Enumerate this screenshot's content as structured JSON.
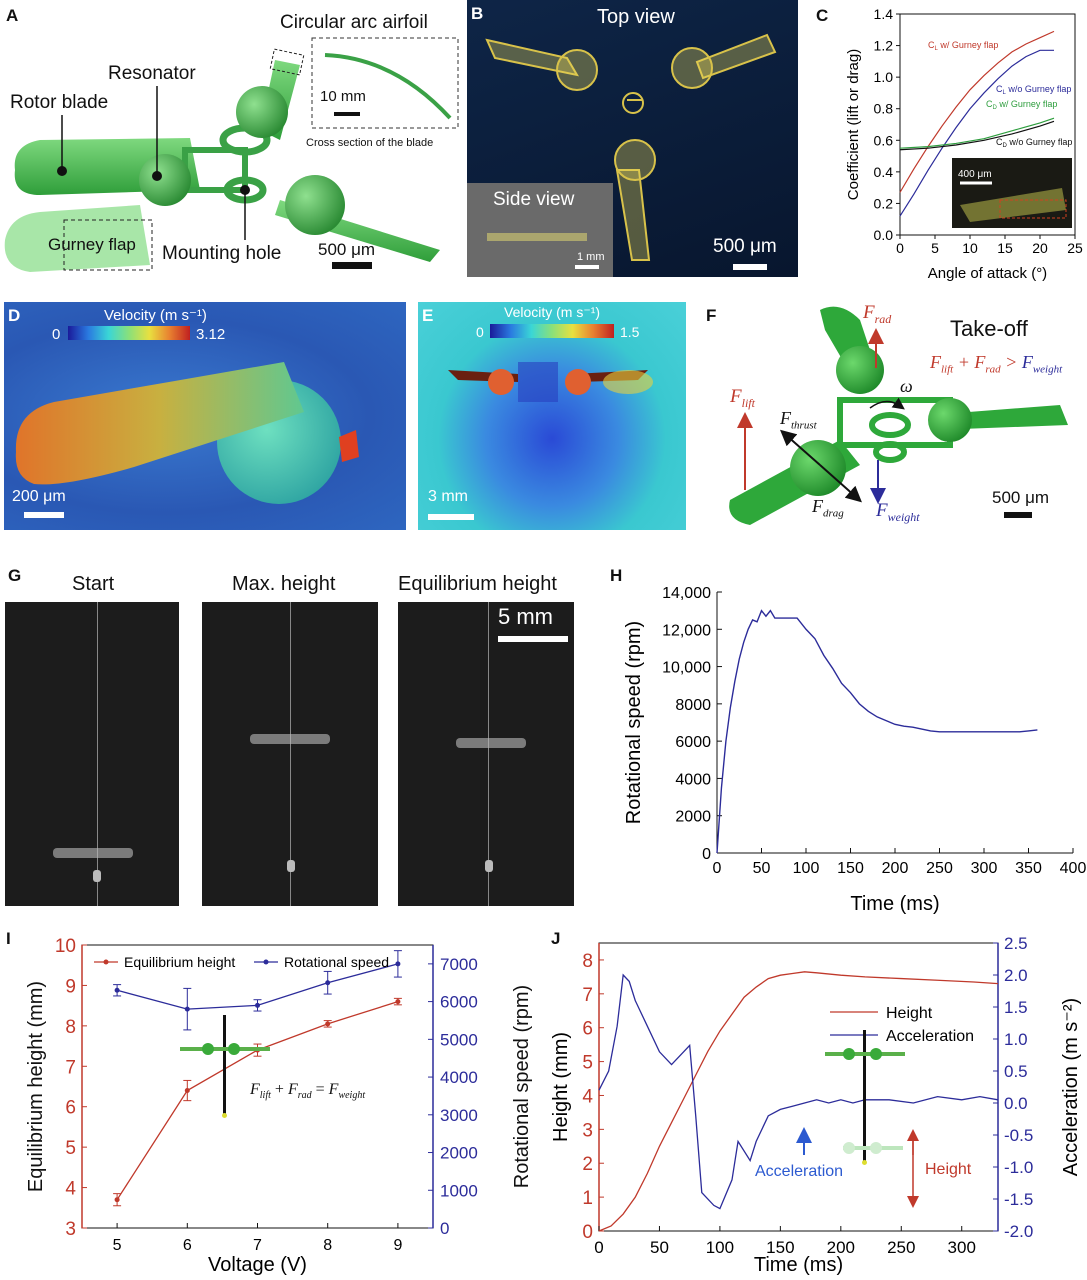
{
  "panels": {
    "A": {
      "label": "A",
      "rotor_blade": "Rotor blade",
      "resonator": "Resonator",
      "circular_arc_airfoil": "Circular arc airfoil",
      "scale_10mm": "10 mm",
      "cross_section": "Cross section of the blade",
      "gurney_flap": "Gurney flap",
      "mounting_hole": "Mounting hole",
      "scale_500um": "500 μm"
    },
    "B": {
      "label": "B",
      "top_view": "Top view",
      "side_view": "Side view",
      "scale_1mm": "1 mm",
      "scale_500um": "500 μm"
    },
    "C": {
      "label": "C"
    },
    "D": {
      "label": "D",
      "colorbar_title": "Velocity (m s⁻¹)",
      "cb_min": "0",
      "cb_max": "3.12",
      "scale": "200 μm"
    },
    "E": {
      "label": "E",
      "colorbar_title": "Velocity (m s⁻¹)",
      "cb_min": "0",
      "cb_max": "1.5",
      "scale": "3 mm"
    },
    "F": {
      "label": "F",
      "takeoff": "Take-off",
      "f_rad": "F",
      "f_rad_sub": "rad",
      "f_lift": "F",
      "f_lift_sub": "lift",
      "f_thrust": "F",
      "f_thrust_sub": "thrust",
      "f_drag": "F",
      "f_drag_sub": "drag",
      "f_weight": "F",
      "f_weight_sub": "weight",
      "omega": "ω",
      "eq_a": "F",
      "eq_a_sub": "lift",
      "eq_plus": " + ",
      "eq_b": "F",
      "eq_b_sub": "rad",
      "eq_gt": " > ",
      "eq_c": "F",
      "eq_c_sub": "weight",
      "scale": "500 μm"
    },
    "G": {
      "label": "G",
      "start": "Start",
      "max_height": "Max. height",
      "equilibrium_height": "Equilibrium height",
      "scale": "5 mm"
    },
    "H": {
      "label": "H"
    },
    "I": {
      "label": "I",
      "eq_a": "F",
      "eq_a_sub": "lift",
      "eq_plus": " + ",
      "eq_b": "F",
      "eq_b_sub": "rad",
      "eq_equals": " = ",
      "eq_c": "F",
      "eq_c_sub": "weight"
    },
    "J": {
      "label": "J",
      "acceleration_note": "Acceleration",
      "height_note": "Height"
    }
  },
  "colors": {
    "red": "#c0392b",
    "blue": "#2c2c9a",
    "green": "#2e9e3e",
    "black": "#111111",
    "lightgreen": "#66cc44"
  },
  "chart_data": [
    {
      "id": "C",
      "type": "line",
      "xlabel": "Angle of attack (°)",
      "ylabel": "Coefficient (lift or drag)",
      "xlim": [
        0,
        25
      ],
      "ylim": [
        0,
        1.4
      ],
      "xticks": [
        "0",
        "5",
        "10",
        "15",
        "20",
        "25"
      ],
      "yticks": [
        "0.0",
        "0.2",
        "0.4",
        "0.6",
        "0.8",
        "1.0",
        "1.2",
        "1.4"
      ],
      "series": [
        {
          "name": "CL w/ Gurney flap",
          "color": "#c0392b",
          "x": [
            0,
            2,
            4,
            6,
            8,
            10,
            12,
            14,
            16,
            18,
            20,
            22
          ],
          "y": [
            0.27,
            0.42,
            0.56,
            0.69,
            0.81,
            0.92,
            1.01,
            1.09,
            1.16,
            1.21,
            1.25,
            1.29
          ]
        },
        {
          "name": "CL w/o Gurney flap",
          "color": "#2c2c9a",
          "x": [
            0,
            2,
            4,
            6,
            8,
            10,
            12,
            14,
            16,
            18,
            20,
            21,
            22
          ],
          "y": [
            0.12,
            0.26,
            0.41,
            0.55,
            0.68,
            0.8,
            0.9,
            0.99,
            1.07,
            1.13,
            1.17,
            1.17,
            1.17
          ]
        },
        {
          "name": "CD w/ Gurney flap",
          "color": "#2e9e3e",
          "x": [
            0,
            4,
            8,
            12,
            16,
            20,
            22
          ],
          "y": [
            0.55,
            0.56,
            0.58,
            0.61,
            0.66,
            0.71,
            0.74
          ]
        },
        {
          "name": "CD w/o Gurney flap",
          "color": "#111111",
          "x": [
            0,
            4,
            8,
            12,
            16,
            20,
            22
          ],
          "y": [
            0.54,
            0.55,
            0.57,
            0.6,
            0.64,
            0.69,
            0.72
          ]
        }
      ],
      "legend_labels": [
        "C",
        "L",
        " w/ Gurney flap",
        "C",
        "L",
        " w/o Gurney flap",
        "C",
        "D",
        " w/ Gurney flap",
        "C",
        "D",
        " w/o Gurney flap"
      ],
      "inset_scale": "400 μm"
    },
    {
      "id": "H",
      "type": "line",
      "xlabel": "Time (ms)",
      "ylabel": "Rotational speed (rpm)",
      "xlim": [
        0,
        400
      ],
      "ylim": [
        0,
        14000
      ],
      "xticks": [
        "0",
        "50",
        "100",
        "150",
        "200",
        "250",
        "300",
        "350",
        "400"
      ],
      "yticks": [
        "0",
        "2000",
        "4000",
        "6000",
        "8000",
        "10,000",
        "12,000",
        "14,000"
      ],
      "series": [
        {
          "name": "",
          "color": "#2c2c9a",
          "x": [
            0,
            5,
            10,
            15,
            20,
            25,
            30,
            35,
            40,
            45,
            50,
            55,
            60,
            65,
            70,
            80,
            90,
            100,
            110,
            120,
            130,
            140,
            150,
            160,
            170,
            180,
            190,
            200,
            210,
            220,
            230,
            240,
            250,
            260,
            280,
            300,
            320,
            340,
            350,
            360
          ],
          "y": [
            0,
            3500,
            6000,
            7800,
            9200,
            10400,
            11300,
            12000,
            12500,
            12400,
            13000,
            12700,
            13000,
            12600,
            12600,
            12600,
            12600,
            12000,
            11500,
            10600,
            9900,
            9100,
            8600,
            8000,
            7600,
            7300,
            7100,
            6900,
            6800,
            6750,
            6650,
            6550,
            6500,
            6500,
            6500,
            6500,
            6500,
            6500,
            6550,
            6600
          ]
        }
      ]
    },
    {
      "id": "I",
      "type": "line",
      "xlabel": "Voltage (V)",
      "ylabel_left": "Equilibrium height (mm)",
      "ylabel_right": "Rotational speed (rpm)",
      "xlim": [
        4.5,
        9.5
      ],
      "ylim_left": [
        3,
        10
      ],
      "ylim_right": [
        0,
        7500
      ],
      "xticks": [
        "5",
        "6",
        "7",
        "8",
        "9"
      ],
      "yticks_left": [
        "3",
        "4",
        "5",
        "6",
        "7",
        "8",
        "9",
        "10"
      ],
      "yticks_right": [
        "0",
        "1000",
        "2000",
        "3000",
        "4000",
        "5000",
        "6000",
        "7000"
      ],
      "series": [
        {
          "name": "Equilibrium height",
          "color": "#c0392b",
          "axis": "left",
          "x": [
            5,
            6,
            7,
            8,
            9
          ],
          "y": [
            3.7,
            6.4,
            7.4,
            8.05,
            8.6
          ],
          "err": [
            0.15,
            0.25,
            0.15,
            0.08,
            0.08
          ]
        },
        {
          "name": "Rotational speed",
          "color": "#2c2c9a",
          "axis": "right",
          "x": [
            5,
            6,
            7,
            8,
            9
          ],
          "y": [
            6300,
            5800,
            5900,
            6500,
            7000
          ],
          "err": [
            150,
            550,
            150,
            300,
            350
          ]
        }
      ]
    },
    {
      "id": "J",
      "type": "line",
      "xlabel": "Time (ms)",
      "ylabel_left": "Height (mm)",
      "ylabel_right": "Acceleration (m s⁻²)",
      "xlim": [
        0,
        330
      ],
      "ylim_left": [
        0,
        8.5
      ],
      "ylim_right": [
        -2.0,
        2.5
      ],
      "xticks": [
        "0",
        "50",
        "100",
        "150",
        "200",
        "250",
        "300"
      ],
      "yticks_left": [
        "0",
        "1",
        "2",
        "3",
        "4",
        "5",
        "6",
        "7",
        "8"
      ],
      "yticks_right": [
        "-2.0",
        "-1.5",
        "-1.0",
        "-0.5",
        "0.0",
        "0.5",
        "1.0",
        "1.5",
        "2.0",
        "2.5"
      ],
      "series": [
        {
          "name": "Height",
          "color": "#c0392b",
          "axis": "left",
          "x": [
            0,
            10,
            20,
            30,
            40,
            50,
            60,
            70,
            80,
            90,
            100,
            110,
            120,
            130,
            140,
            150,
            160,
            170,
            180,
            200,
            220,
            250,
            280,
            310,
            330
          ],
          "y": [
            0,
            0.15,
            0.5,
            1.0,
            1.7,
            2.5,
            3.2,
            3.9,
            4.6,
            5.3,
            5.9,
            6.4,
            6.9,
            7.2,
            7.45,
            7.55,
            7.6,
            7.65,
            7.62,
            7.55,
            7.5,
            7.45,
            7.4,
            7.35,
            7.3
          ]
        },
        {
          "name": "Acceleration",
          "color": "#2c2c9a",
          "axis": "right",
          "x": [
            0,
            8,
            15,
            20,
            25,
            30,
            40,
            50,
            60,
            70,
            75,
            80,
            85,
            95,
            100,
            110,
            115,
            125,
            130,
            140,
            150,
            160,
            170,
            180,
            190,
            200,
            210,
            220,
            230,
            240,
            260,
            280,
            300,
            315,
            330
          ],
          "y": [
            0.2,
            0.5,
            1.2,
            2.0,
            1.9,
            1.6,
            1.2,
            0.8,
            0.6,
            0.8,
            0.9,
            -0.2,
            -1.4,
            -1.6,
            -1.65,
            -1.2,
            -0.6,
            -0.9,
            -0.6,
            -0.2,
            -0.1,
            -0.05,
            0.0,
            0.05,
            0.0,
            0.05,
            0.0,
            0.05,
            0.05,
            0.05,
            0.0,
            0.1,
            0.05,
            0.1,
            0.05
          ]
        }
      ]
    }
  ]
}
